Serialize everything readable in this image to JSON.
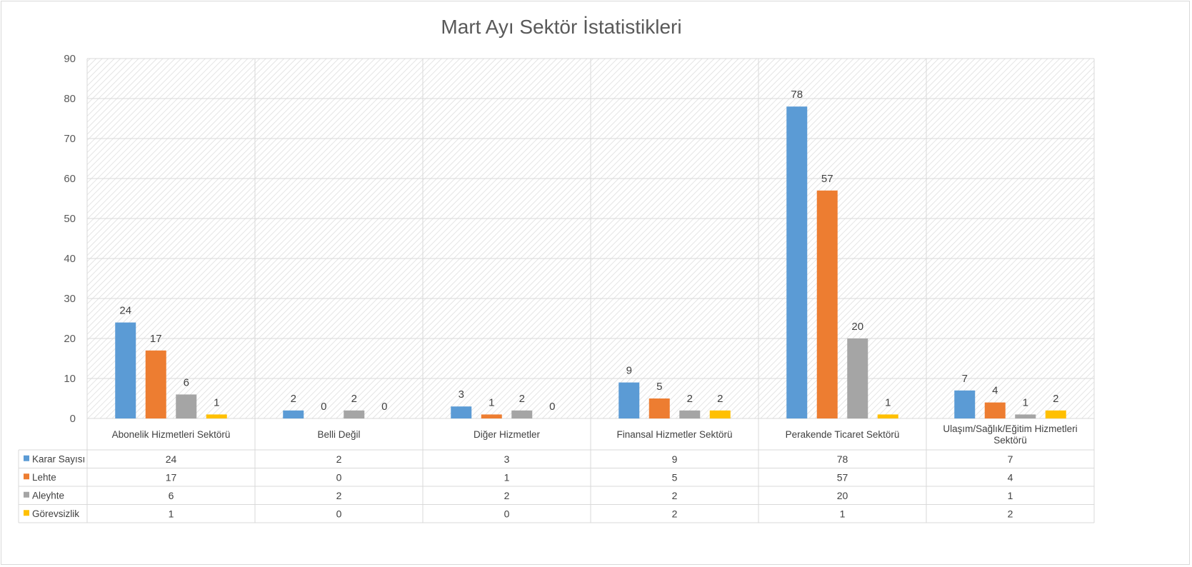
{
  "chart_data": {
    "type": "bar",
    "title": "Mart Ayı Sektör İstatistikleri",
    "categories": [
      "Abonelik Hizmetleri Sektörü",
      "Belli Değil",
      "Diğer Hizmetler",
      "Finansal Hizmetler Sektörü",
      "Perakende Ticaret Sektörü",
      "Ulaşım/Sağlık/Eğitim Hizmetleri Sektörü"
    ],
    "category_lines": [
      [
        "Abonelik Hizmetleri Sektörü"
      ],
      [
        "Belli Değil"
      ],
      [
        "Diğer Hizmetler"
      ],
      [
        "Finansal Hizmetler Sektörü"
      ],
      [
        "Perakende Ticaret Sektörü"
      ],
      [
        "Ulaşım/Sağlık/Eğitim Hizmetleri",
        "Sektörü"
      ]
    ],
    "series": [
      {
        "name": "Karar Sayısı",
        "color": "#5b9bd5",
        "values": [
          24,
          2,
          3,
          9,
          78,
          7
        ]
      },
      {
        "name": "Lehte",
        "color": "#ed7d31",
        "values": [
          17,
          0,
          1,
          5,
          57,
          4
        ]
      },
      {
        "name": "Aleyhte",
        "color": "#a5a5a5",
        "values": [
          6,
          2,
          2,
          2,
          20,
          1
        ]
      },
      {
        "name": "Görevsizlik",
        "color": "#ffc000",
        "values": [
          1,
          0,
          0,
          2,
          1,
          2
        ]
      }
    ],
    "ylim": [
      0,
      90
    ],
    "yticks": [
      "0",
      "10",
      "20",
      "30",
      "40",
      "50",
      "60",
      "70",
      "80",
      "90"
    ],
    "xlabel": "",
    "ylabel": "",
    "grid": true,
    "data_labels": true,
    "data_table": true,
    "legend": "data-table-left"
  }
}
